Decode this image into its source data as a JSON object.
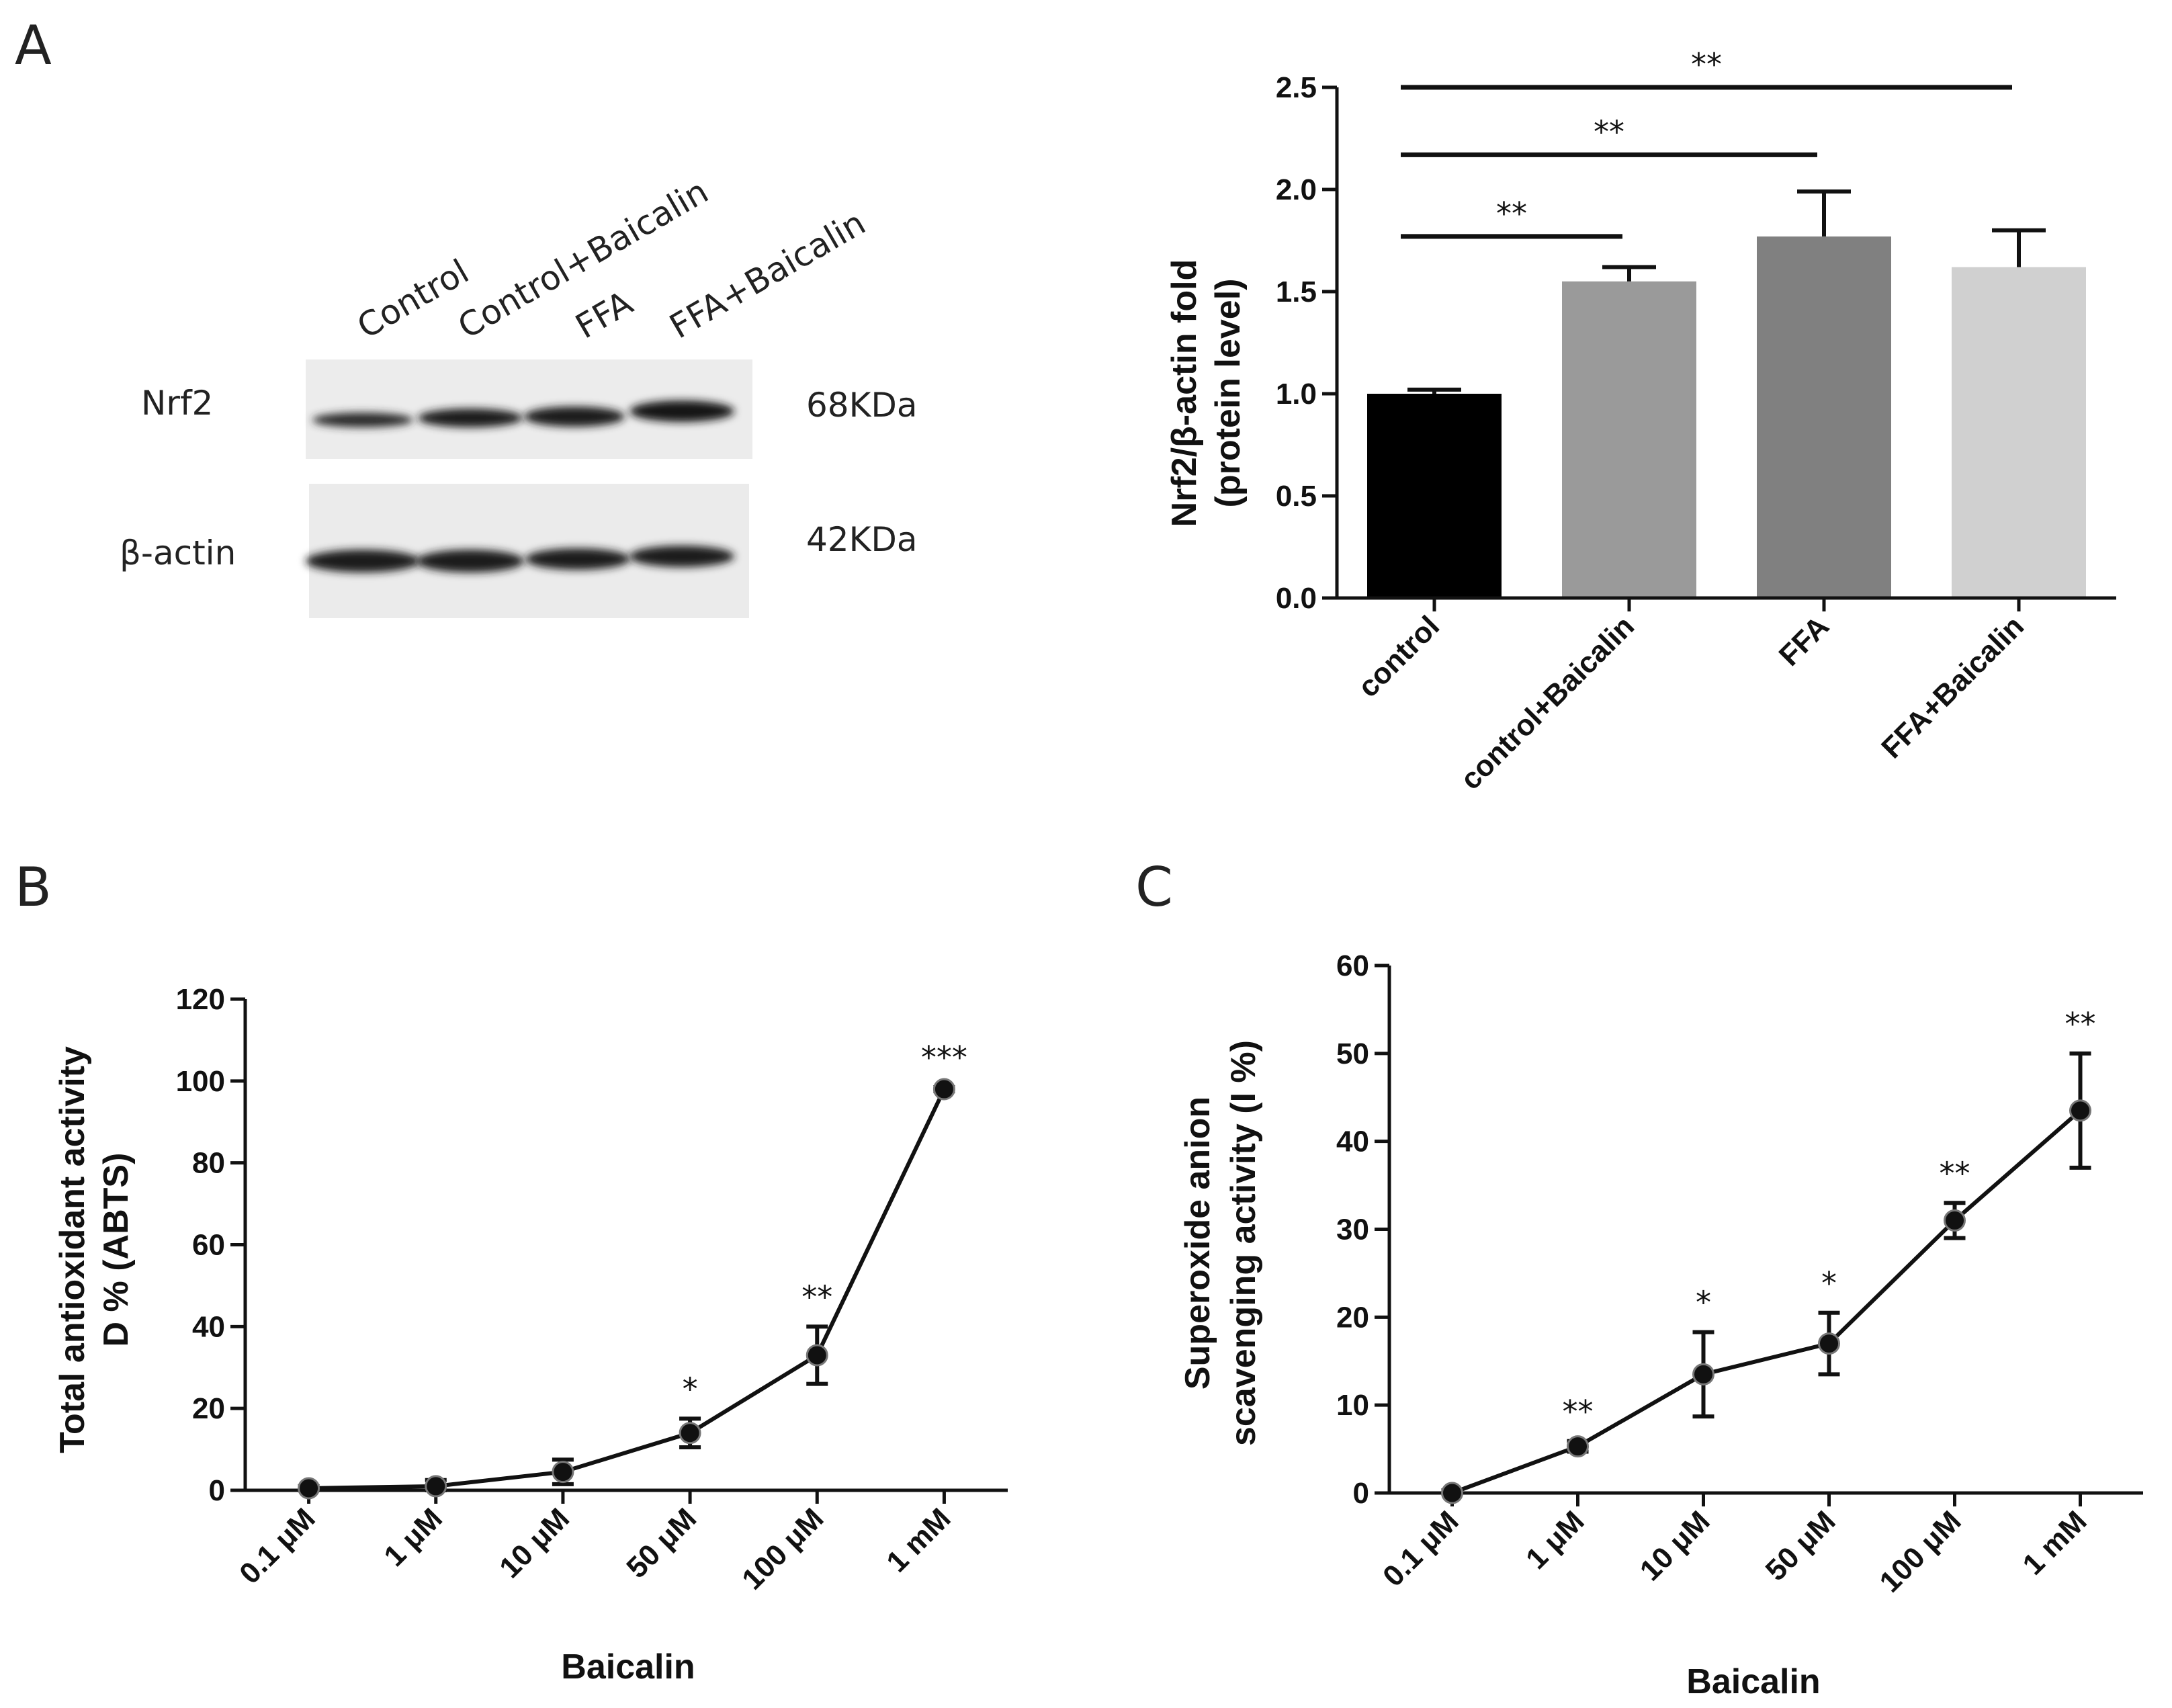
{
  "panel_A": {
    "letter": "A",
    "blot": {
      "lanes": [
        "Control",
        "Control+Baicalin",
        "FFA",
        "FFA+Baicalin"
      ],
      "rows": [
        {
          "protein": "Nrf2",
          "size": "68KDa"
        },
        {
          "protein": "β-actin",
          "size": "42KDa"
        }
      ]
    }
  },
  "panel_B": {
    "letter": "B"
  },
  "panel_C": {
    "letter": "C"
  },
  "chart_data": [
    {
      "id": "A",
      "type": "bar",
      "categories": [
        "control",
        "control+Baicalin",
        "FFA",
        "FFA+Baicalin"
      ],
      "values": [
        1.0,
        1.55,
        1.77,
        1.62
      ],
      "errors": [
        0.02,
        0.07,
        0.22,
        0.18
      ],
      "bar_colors": [
        "#000000",
        "#9a9a9a",
        "#808080",
        "#d0d0d0"
      ],
      "ylabel": [
        "Nrf2/β-actin fold",
        "(protein level)"
      ],
      "ylim": [
        0,
        2.5
      ],
      "yticks": [
        "0.0",
        "0.5",
        "1.0",
        "1.5",
        "2.0",
        "2.5"
      ],
      "significance": [
        {
          "from": 0,
          "to": 1,
          "level": 1.77,
          "label": "**"
        },
        {
          "from": 0,
          "to": 2,
          "level": 2.17,
          "label": "**"
        },
        {
          "from": 0,
          "to": 3,
          "level": 2.5,
          "label": "**"
        }
      ]
    },
    {
      "id": "B",
      "type": "line",
      "categories": [
        "0.1 μM",
        "1 μM",
        "10 μM",
        "50 μM",
        "100 μM",
        "1 mM"
      ],
      "values": [
        0.5,
        1.0,
        4.5,
        14.0,
        33.0,
        98.0
      ],
      "errors": [
        0.5,
        1.5,
        3.0,
        3.5,
        7.0,
        0.5
      ],
      "annotations": [
        "",
        "",
        "",
        "*",
        "**",
        "***"
      ],
      "xlabel": "Baicalin",
      "ylabel": [
        "Total antioxidant activity",
        "D % (ABTS)"
      ],
      "ylim": [
        0,
        120
      ],
      "yticks": [
        "0",
        "20",
        "40",
        "60",
        "80",
        "100",
        "120"
      ]
    },
    {
      "id": "C",
      "type": "line",
      "categories": [
        "0.1 μM",
        "1 μM",
        "10 μM",
        "50 μM",
        "100 μM",
        "1 mM"
      ],
      "values": [
        0.0,
        5.3,
        13.5,
        17.0,
        31.0,
        43.5
      ],
      "errors": [
        0.3,
        0.6,
        4.8,
        3.5,
        2.0,
        6.5
      ],
      "annotations": [
        "",
        "**",
        "*",
        "*",
        "**",
        "**"
      ],
      "xlabel": "Baicalin",
      "ylabel": [
        "Superoxide anion",
        "scavenging activity (I %)"
      ],
      "ylim": [
        0,
        60
      ],
      "yticks": [
        "0",
        "10",
        "20",
        "30",
        "40",
        "50",
        "60"
      ]
    }
  ]
}
